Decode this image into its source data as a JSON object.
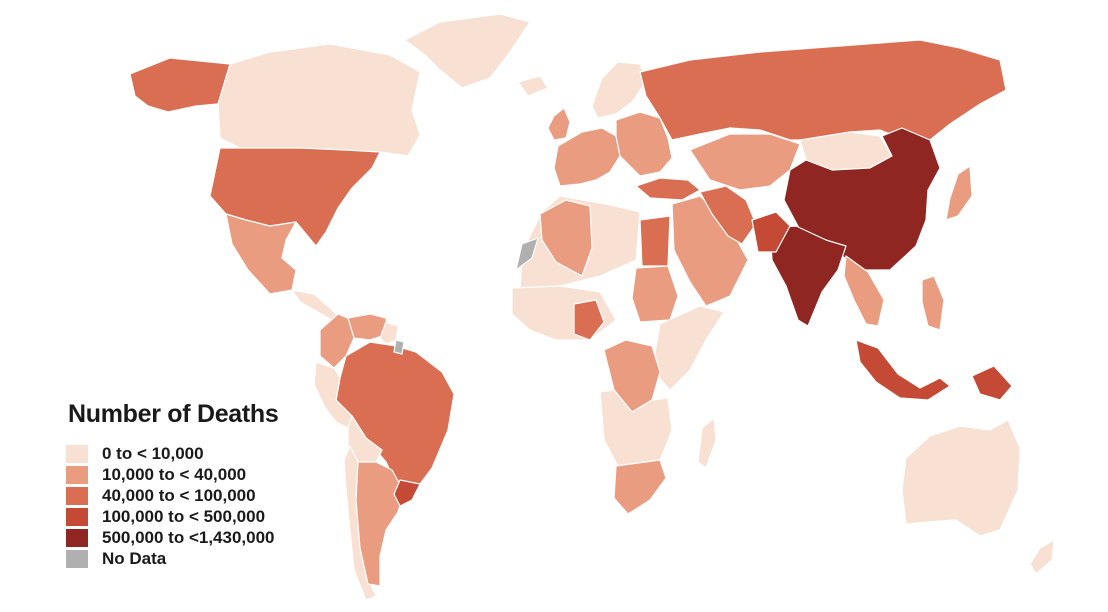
{
  "map": {
    "legend": {
      "title": "Number of Deaths",
      "items": [
        {
          "label": "0 to < 10,000",
          "color": "#f8e0d3"
        },
        {
          "label": "10,000 to < 40,000",
          "color": "#e99c80"
        },
        {
          "label": "40,000 to < 100,000",
          "color": "#da6e52"
        },
        {
          "label": "100,000 to < 500,000",
          "color": "#c44a35"
        },
        {
          "label": "500,000 to <1,430,000",
          "color": "#8f2622"
        },
        {
          "label": "No Data",
          "color": "#b0b0b0"
        }
      ]
    },
    "regions": [
      {
        "name": "alaska",
        "cls": 2
      },
      {
        "name": "canada",
        "cls": 0
      },
      {
        "name": "greenland",
        "cls": 0
      },
      {
        "name": "usa",
        "cls": 2
      },
      {
        "name": "mexico",
        "cls": 1
      },
      {
        "name": "central-america",
        "cls": 0
      },
      {
        "name": "colombia",
        "cls": 1
      },
      {
        "name": "venezuela",
        "cls": 1
      },
      {
        "name": "guianas",
        "cls": 0
      },
      {
        "name": "brazil",
        "cls": 2
      },
      {
        "name": "peru",
        "cls": 0
      },
      {
        "name": "bolivia",
        "cls": 0
      },
      {
        "name": "chile",
        "cls": 0
      },
      {
        "name": "argentina",
        "cls": 1
      },
      {
        "name": "uruguay-south-brazil",
        "cls": 3
      },
      {
        "name": "iceland",
        "cls": 0
      },
      {
        "name": "scandinavia",
        "cls": 0
      },
      {
        "name": "uk",
        "cls": 1
      },
      {
        "name": "western-europe",
        "cls": 1
      },
      {
        "name": "eastern-europe",
        "cls": 1
      },
      {
        "name": "russia",
        "cls": 2
      },
      {
        "name": "turkey",
        "cls": 2
      },
      {
        "name": "middle-east",
        "cls": 1
      },
      {
        "name": "iran",
        "cls": 2
      },
      {
        "name": "central-asia",
        "cls": 1
      },
      {
        "name": "mongolia",
        "cls": 0
      },
      {
        "name": "china",
        "cls": 4
      },
      {
        "name": "india",
        "cls": 4
      },
      {
        "name": "pakistan",
        "cls": 3
      },
      {
        "name": "southeast-asia",
        "cls": 1
      },
      {
        "name": "japan",
        "cls": 1
      },
      {
        "name": "philippines",
        "cls": 1
      },
      {
        "name": "indonesia",
        "cls": 3
      },
      {
        "name": "new-guinea",
        "cls": 3
      },
      {
        "name": "australia",
        "cls": 0
      },
      {
        "name": "new-zealand",
        "cls": 0
      },
      {
        "name": "north-africa",
        "cls": 0
      },
      {
        "name": "algeria",
        "cls": 1
      },
      {
        "name": "egypt",
        "cls": 2
      },
      {
        "name": "west-africa",
        "cls": 0
      },
      {
        "name": "nigeria",
        "cls": 2
      },
      {
        "name": "sudan",
        "cls": 1
      },
      {
        "name": "east-africa",
        "cls": 0
      },
      {
        "name": "dr-congo",
        "cls": 1
      },
      {
        "name": "southern-africa",
        "cls": 0
      },
      {
        "name": "south-africa",
        "cls": 1
      },
      {
        "name": "madagascar",
        "cls": 0
      },
      {
        "name": "western-sahara",
        "cls": 5
      },
      {
        "name": "french-guiana",
        "cls": 5
      }
    ]
  }
}
